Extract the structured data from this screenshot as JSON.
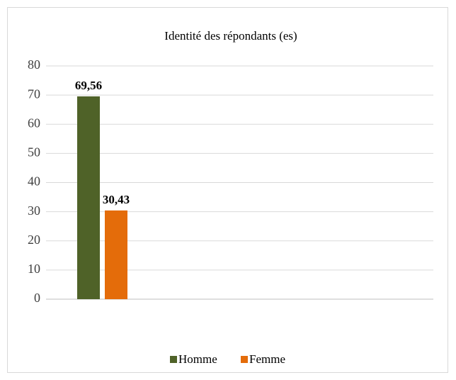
{
  "chart_data": {
    "type": "bar",
    "title": "Identité des répondants (es)",
    "categories": [
      null
    ],
    "series": [
      {
        "name": "Homme",
        "color": "#4f6228",
        "values": [
          69.56
        ],
        "value_labels": [
          "69,56"
        ]
      },
      {
        "name": "Femme",
        "color": "#e46c0a",
        "values": [
          30.43
        ],
        "value_labels": [
          "30,43"
        ]
      }
    ],
    "ylim": [
      0,
      80
    ],
    "yticks": [
      0,
      10,
      20,
      30,
      40,
      50,
      60,
      70,
      80
    ],
    "grid": true,
    "legend": "bottom"
  }
}
